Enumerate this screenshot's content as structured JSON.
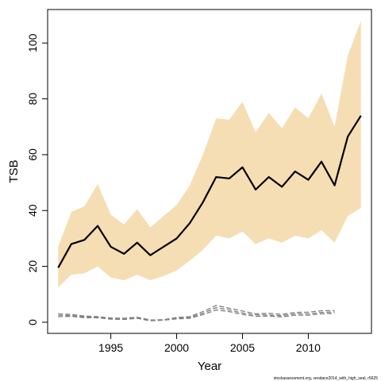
{
  "chart_data": {
    "type": "area",
    "xlabel": "Year",
    "ylabel": "TSB",
    "xlim": [
      1990.2,
      2014.8
    ],
    "ylim": [
      -4,
      112
    ],
    "xticks": [
      1995,
      2000,
      2005,
      2010
    ],
    "yticks": [
      0,
      20,
      40,
      60,
      80,
      100
    ],
    "grid": false,
    "x": [
      1991,
      1992,
      1993,
      1994,
      1995,
      1996,
      1997,
      1998,
      1999,
      2000,
      2001,
      2002,
      2003,
      2004,
      2005,
      2006,
      2007,
      2008,
      2009,
      2010,
      2011,
      2012,
      2013,
      2014
    ],
    "band": {
      "color": "#F5DEB3",
      "lower": [
        12.5,
        17,
        17.5,
        20,
        16,
        15,
        17,
        15,
        16.5,
        18.5,
        22,
        26,
        31,
        30,
        32.5,
        28,
        30,
        28.5,
        31,
        30,
        33,
        28.5,
        38,
        41
      ],
      "upper": [
        27,
        39.5,
        41.5,
        49.5,
        38.5,
        35,
        40.5,
        34,
        38,
        42,
        49,
        60,
        73,
        72.5,
        79,
        68,
        75,
        69.5,
        77,
        73,
        82,
        70,
        95.5,
        108
      ]
    },
    "series": [
      {
        "color": "#000000",
        "style": "solid",
        "values": [
          19.5,
          28,
          29.5,
          34.5,
          27,
          24.5,
          28.5,
          24,
          27,
          30,
          35.5,
          43,
          52,
          51.5,
          55.5,
          47.5,
          52,
          48.5,
          54,
          51,
          57.5,
          49,
          66.5,
          74
        ]
      },
      {
        "color": "#808080",
        "style": "dashed",
        "x": [
          1991,
          1992,
          1993,
          1994,
          1995,
          1996,
          1997,
          1998,
          1999,
          2000,
          2001,
          2002,
          2003,
          2004,
          2005,
          2006,
          2007,
          2008,
          2009,
          2010,
          2011,
          2012
        ],
        "values": [
          3,
          2.8,
          2.2,
          2,
          1.5,
          1.4,
          1.8,
          0.8,
          0.9,
          1.7,
          2,
          3.8,
          6,
          5,
          4,
          3,
          3.2,
          2.8,
          3.5,
          3.6,
          4.1,
          4.2
        ]
      },
      {
        "color": "#808080",
        "style": "dashed",
        "x": [
          1991,
          1992,
          1993,
          1994,
          1995,
          1996,
          1997,
          1998,
          1999,
          2000,
          2001,
          2002,
          2003,
          2004,
          2005,
          2006,
          2007,
          2008,
          2009,
          2010,
          2011,
          2012
        ],
        "values": [
          2.5,
          2.4,
          1.9,
          1.8,
          1.3,
          1.2,
          1.6,
          0.6,
          0.8,
          1.4,
          1.7,
          3.2,
          5.2,
          4.4,
          3.3,
          2.6,
          2.6,
          2.3,
          3,
          3,
          3.5,
          3.7
        ]
      },
      {
        "color": "#808080",
        "style": "dashed",
        "x": [
          1991,
          1992,
          1993,
          1994,
          1995,
          1996,
          1997,
          1998,
          1999,
          2000,
          2001,
          2002,
          2003,
          2004,
          2005,
          2006,
          2007,
          2008,
          2009,
          2010,
          2011,
          2012
        ],
        "values": [
          2,
          2.1,
          1.6,
          1.6,
          1.1,
          1,
          1.4,
          0.5,
          0.7,
          1.2,
          1.4,
          2.7,
          4.4,
          3.8,
          2.8,
          2.1,
          2.2,
          1.9,
          2.5,
          2.5,
          3,
          3.2
        ]
      }
    ],
    "footnote": "stockassessment.org, vendace2014_with_high_seal, r5625"
  }
}
